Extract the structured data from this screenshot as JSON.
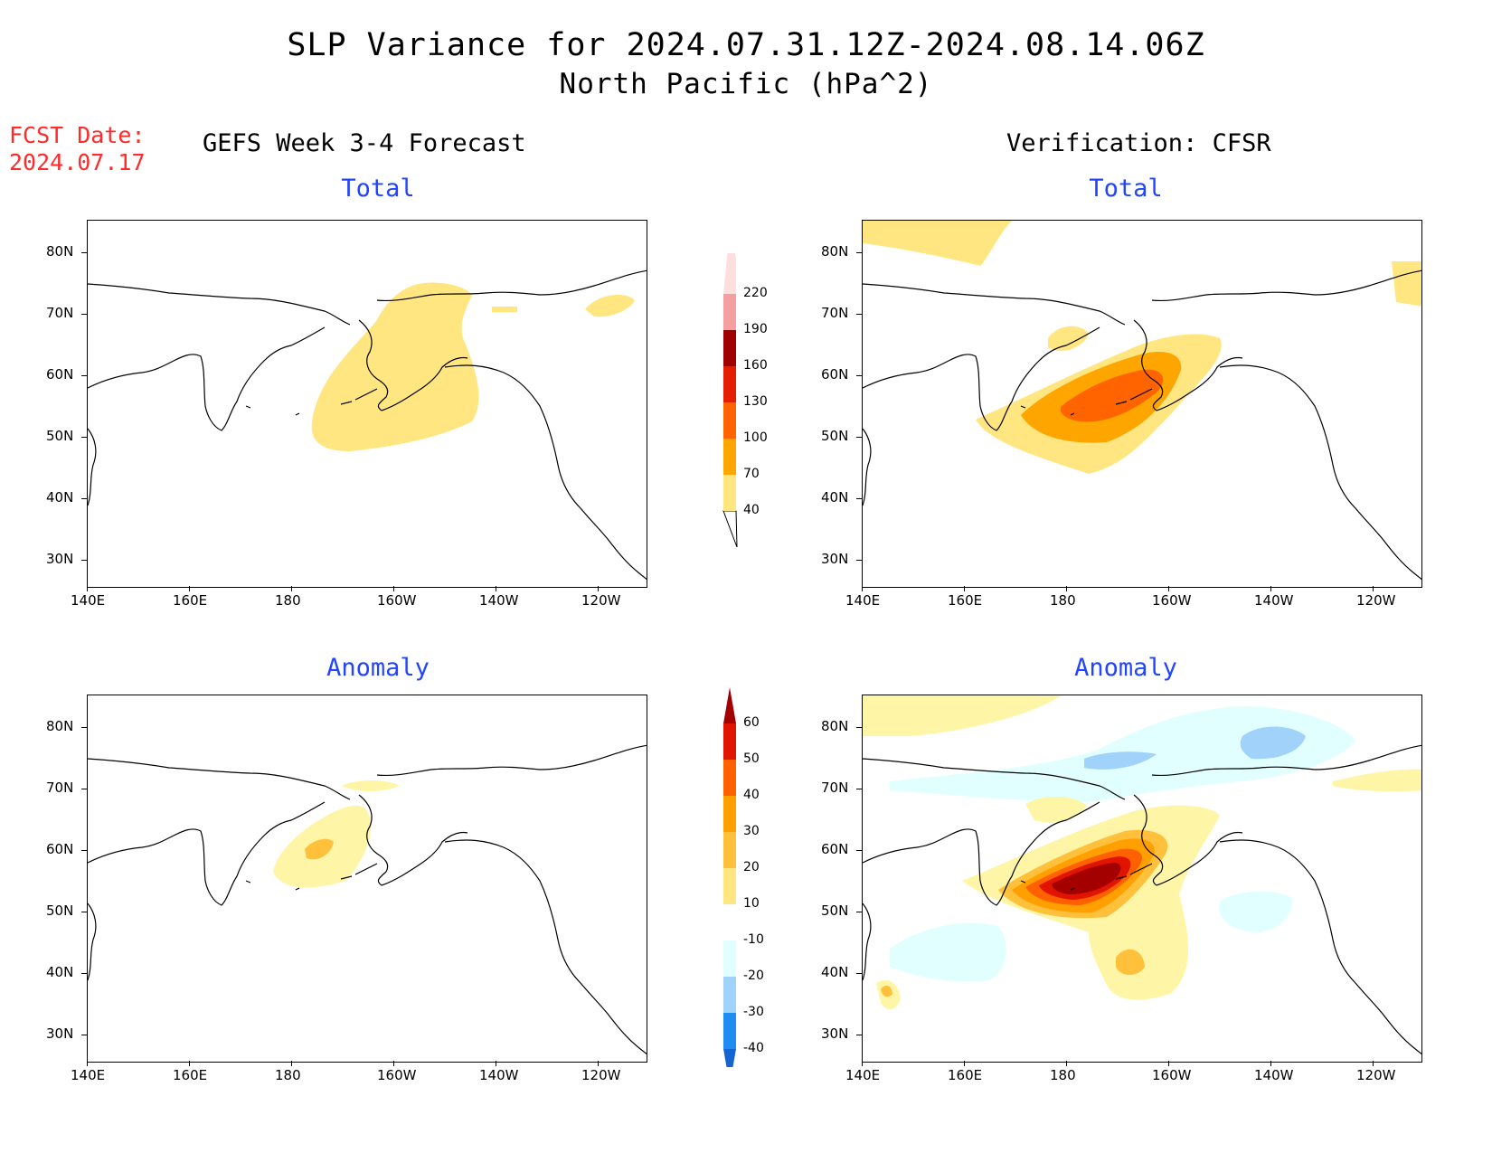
{
  "title_line1": "SLP Variance for 2024.07.31.12Z-2024.08.14.06Z",
  "title_line2": "North Pacific (hPa^2)",
  "fcst_date_label": "FCST Date:",
  "fcst_date_value": "2024.07.17",
  "left_column_header": "GEFS Week 3-4 Forecast",
  "right_column_header": "Verification: CFSR",
  "panels": {
    "forecast_total": {
      "title": "Total"
    },
    "verification_total": {
      "title": "Total"
    },
    "forecast_anomaly": {
      "title": "Anomaly"
    },
    "verification_anomaly": {
      "title": "Anomaly"
    }
  },
  "lon_ticks": [
    "140E",
    "160E",
    "180",
    "160W",
    "140W",
    "120W"
  ],
  "lat_ticks": [
    "80N",
    "70N",
    "60N",
    "50N",
    "40N",
    "30N"
  ],
  "total_colorbar": {
    "levels": [
      "40",
      "70",
      "100",
      "130",
      "160",
      "190",
      "220"
    ],
    "colors": [
      "#ffe680",
      "#ffa500",
      "#ff6400",
      "#e61e00",
      "#a00000",
      "#f5a0a0",
      "#ffdede"
    ]
  },
  "anomaly_colorbar": {
    "levels": [
      "-40",
      "-30",
      "-20",
      "-10",
      "10",
      "20",
      "30",
      "40",
      "50",
      "60"
    ],
    "colors": [
      "#1464d2",
      "#1e8cf0",
      "#a0d2fa",
      "#e1ffff",
      "#ffffff",
      "#ffe680",
      "#ffc03c",
      "#ffa000",
      "#ff6000",
      "#e11400",
      "#a50000"
    ]
  },
  "fill_colors": {
    "c40": "#ffe680",
    "c70": "#ffa500",
    "c100": "#ff6400",
    "a10": "#fff5a6",
    "a20": "#ffc03c",
    "a30": "#ffa000",
    "a40": "#ff6000",
    "a50": "#e11400",
    "a60": "#a50000",
    "n10": "#e1ffff",
    "n20": "#a0d2fa"
  }
}
